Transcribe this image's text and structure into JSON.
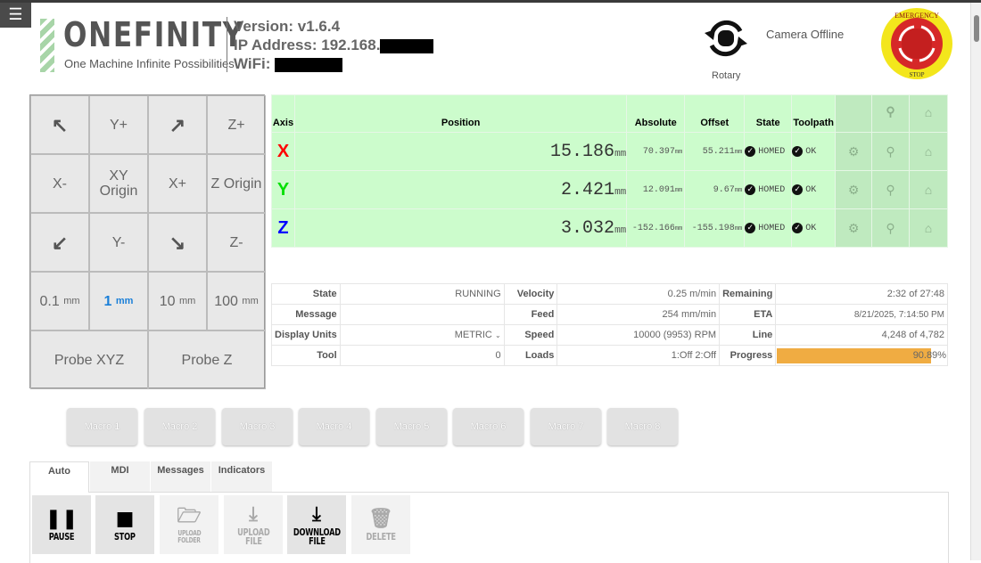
{
  "header": {
    "menu_icon": "hamburger-icon",
    "brand": "ONEFINITY",
    "tagline": "One Machine Infinite Possibilities",
    "version": "Version: v1.6.4",
    "ip_label": "IP Address: 192.168.",
    "wifi_label": "WiFi:",
    "rotary_label": "Rotary",
    "camera_status": "Camera Offline",
    "estop_top": "EMERGENCY",
    "estop_bottom": "STOP"
  },
  "jog": {
    "buttons": [
      "Y+",
      "Z+",
      "X-",
      "XY Origin",
      "X+",
      "Z Origin",
      "Y-",
      "Z-"
    ],
    "steps": [
      {
        "value": "0.1",
        "unit": "mm"
      },
      {
        "value": "1",
        "unit": "mm",
        "selected": true
      },
      {
        "value": "10",
        "unit": "mm"
      },
      {
        "value": "100",
        "unit": "mm"
      }
    ],
    "probe_xyz": "Probe XYZ",
    "probe_z": "Probe Z"
  },
  "dro": {
    "headers": [
      "Axis",
      "Position",
      "Absolute",
      "Offset",
      "State",
      "Toolpath"
    ],
    "unit": "mm",
    "rows": [
      {
        "axis": "X",
        "color": "#ff0000",
        "position": "15.186",
        "absolute": "70.397",
        "offset": "55.211",
        "state": "HOMED",
        "toolpath": "OK"
      },
      {
        "axis": "Y",
        "color": "#00e000",
        "position": "2.421",
        "absolute": "12.091",
        "offset": "9.67",
        "state": "HOMED",
        "toolpath": "OK"
      },
      {
        "axis": "Z",
        "color": "#0000ff",
        "position": "3.032",
        "absolute": "-152.166",
        "offset": "-155.198",
        "state": "HOMED",
        "toolpath": "OK"
      }
    ]
  },
  "status": {
    "state_label": "State",
    "state": "RUNNING",
    "message_label": "Message",
    "message": "",
    "units_label": "Display Units",
    "units": "METRIC",
    "tool_label": "Tool",
    "tool": "0",
    "velocity_label": "Velocity",
    "velocity": "0.25 m/min",
    "feed_label": "Feed",
    "feed": "254 mm/min",
    "speed_label": "Speed",
    "speed": "10000 (9953) RPM",
    "loads_label": "Loads",
    "loads": "1:Off 2:Off",
    "remaining_label": "Remaining",
    "remaining": "2:32 of 27:48",
    "eta_label": "ETA",
    "eta": "8/21/2025, 7:14:50 PM",
    "line_label": "Line",
    "line": "4,248 of 4,782",
    "progress_label": "Progress",
    "progress": "90.89%",
    "progress_value": 90.89,
    "progress_color": "#f0ac42"
  },
  "macros": [
    "Macro 1",
    "Macro 2",
    "Macro 3",
    "Macro 4",
    "Macro 5",
    "Macro 6",
    "Macro 7",
    "Macro 8"
  ],
  "tabs": [
    "Auto",
    "MDI",
    "Messages",
    "Indicators"
  ],
  "actions": {
    "pause": "PAUSE",
    "stop": "STOP",
    "upload_folder_1": "UPLOAD",
    "upload_folder_2": "FOLDER",
    "upload_file_1": "UPLOAD",
    "upload_file_2": "FILE",
    "download_1": "DOWNLOAD",
    "download_2": "FILE",
    "delete": "DELETE"
  }
}
